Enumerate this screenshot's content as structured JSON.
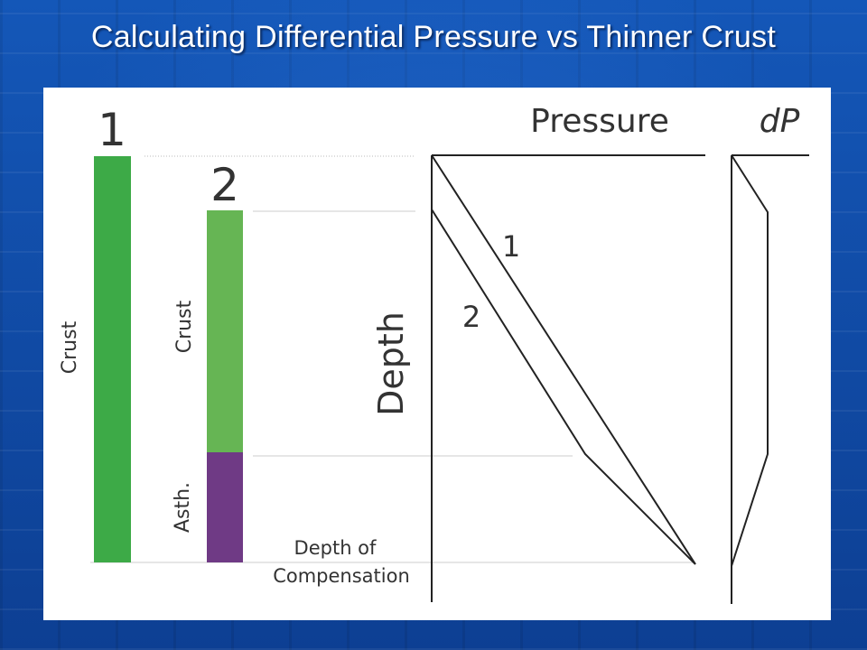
{
  "slide": {
    "title": "Calculating Differential Pressure vs Thinner Crust"
  },
  "colors": {
    "crust_column_1": "#3daa47",
    "crust_column_2": "#66b554",
    "asthenosphere": "#6f3a85",
    "background": "#0e4aa2"
  },
  "diagram": {
    "column_1": {
      "number": "1",
      "crust_label": "Crust"
    },
    "column_2": {
      "number": "2",
      "crust_label": "Crust",
      "asth_label": "Asth."
    },
    "compensation_label_line1": "Depth of",
    "compensation_label_line2": "Compensation",
    "pressure_plot": {
      "title": "Pressure",
      "y_label": "Depth",
      "curve_1_label": "1",
      "curve_2_label": "2"
    },
    "dp_plot": {
      "title": "dP"
    }
  }
}
